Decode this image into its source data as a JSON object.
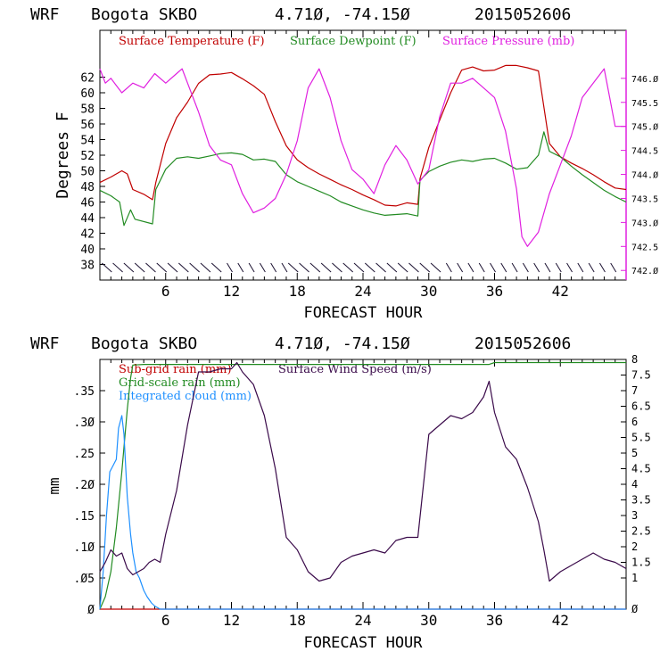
{
  "colors": {
    "temp": "#c00000",
    "dew": "#228b22",
    "pres": "#e020e0",
    "subgrid": "#c00000",
    "grid": "#228b22",
    "cloud": "#1e90ff",
    "wind": "#3a0a4a",
    "axis": "#000000"
  },
  "chart_data": [
    {
      "type": "line",
      "header": {
        "model": "WRF",
        "station": "Bogota SKBO",
        "coords": "4.71Ø, -74.15Ø",
        "run": "2015052606"
      },
      "xlabel": "FORECAST HOUR",
      "ylabel": "Degrees F",
      "xlim": [
        0,
        48
      ],
      "x_ticks": [
        "6",
        "12",
        "18",
        "24",
        "30",
        "36",
        "42"
      ],
      "ylim": [
        36,
        68
      ],
      "y_ticks": [
        "38",
        "40",
        "42",
        "44",
        "46",
        "48",
        "50",
        "52",
        "54",
        "56",
        "58",
        "60",
        "62"
      ],
      "y2lim": [
        741.8,
        747.0
      ],
      "y2_ticks": [
        "742.Ø",
        "742.5",
        "743.Ø",
        "743.5",
        "744.Ø",
        "744.5",
        "745.Ø",
        "745.5",
        "746.Ø"
      ],
      "legend": [
        "Surface Temperature (F)",
        "Surface Dewpoint (F)",
        "Surface Pressure (mb)"
      ],
      "series": [
        {
          "name": "Surface Temperature (F)",
          "axis": "left",
          "x": [
            0,
            1,
            2,
            2.5,
            3,
            4,
            4.8,
            5.1,
            6,
            7,
            8,
            9,
            10,
            11,
            12,
            13,
            14,
            15,
            16,
            17,
            18,
            19,
            20,
            21,
            22,
            23,
            24,
            25,
            26,
            27,
            28,
            29,
            29.2,
            30,
            31,
            32,
            33,
            34,
            35,
            36,
            37,
            38,
            39,
            40,
            41,
            42,
            43,
            44,
            45,
            46,
            47,
            48
          ],
          "values": [
            48.5,
            49.2,
            50.0,
            49.6,
            47.6,
            47.0,
            46.3,
            48.5,
            53.5,
            56.8,
            58.8,
            61.2,
            62.3,
            62.4,
            62.6,
            61.8,
            60.9,
            59.8,
            56.3,
            53.2,
            51.4,
            50.4,
            49.6,
            48.9,
            48.2,
            47.6,
            46.9,
            46.3,
            45.6,
            45.5,
            45.9,
            45.7,
            49.0,
            53.0,
            56.5,
            60.0,
            62.9,
            63.3,
            62.8,
            62.9,
            63.5,
            63.5,
            63.2,
            62.8,
            53.5,
            51.8,
            51.0,
            50.3,
            49.5,
            48.6,
            47.8,
            47.6
          ]
        },
        {
          "name": "Surface Dewpoint (F)",
          "axis": "left",
          "x": [
            0,
            1,
            1.8,
            2.2,
            2.8,
            3.2,
            4.8,
            5.1,
            6,
            7,
            8,
            9,
            10,
            11,
            12,
            13,
            14,
            15,
            16,
            17,
            18,
            19,
            20,
            21,
            22,
            23,
            24,
            25,
            26,
            27,
            28,
            29,
            29.2,
            30,
            31,
            32,
            33,
            34,
            35,
            36,
            37,
            38,
            39,
            40,
            40.5,
            41,
            42,
            43,
            44,
            45,
            46,
            47,
            48
          ],
          "values": [
            47.5,
            46.8,
            46.0,
            43.0,
            45.0,
            43.8,
            43.2,
            47.6,
            50.2,
            51.6,
            51.8,
            51.6,
            51.9,
            52.2,
            52.3,
            52.1,
            51.4,
            51.5,
            51.2,
            49.5,
            48.6,
            48.0,
            47.4,
            46.8,
            46.0,
            45.5,
            45.0,
            44.6,
            44.3,
            44.4,
            44.5,
            44.2,
            48.8,
            49.9,
            50.6,
            51.1,
            51.4,
            51.2,
            51.5,
            51.6,
            51.0,
            50.2,
            50.4,
            52.0,
            55.0,
            52.5,
            51.8,
            50.6,
            49.5,
            48.5,
            47.5,
            46.7,
            46.0
          ]
        },
        {
          "name": "Surface Pressure (mb)",
          "axis": "right",
          "x": [
            0,
            0.5,
            1,
            2,
            3,
            4,
            5,
            6,
            7,
            7.5,
            8,
            9,
            10,
            11,
            12,
            13,
            14,
            15,
            16,
            17,
            18,
            19,
            20,
            21,
            22,
            23,
            24,
            25,
            26,
            27,
            28,
            29,
            30,
            31,
            32,
            33,
            34,
            35,
            36,
            37,
            38,
            38.5,
            39,
            40,
            41,
            42,
            43,
            44,
            45,
            46,
            46.5,
            47,
            48
          ],
          "values": [
            746.2,
            745.9,
            746.0,
            745.7,
            745.9,
            745.8,
            746.1,
            745.9,
            746.1,
            746.2,
            745.9,
            745.3,
            744.6,
            744.3,
            744.2,
            743.6,
            743.2,
            743.3,
            743.5,
            744.0,
            744.7,
            745.8,
            746.2,
            745.6,
            744.7,
            744.1,
            743.9,
            743.6,
            744.2,
            744.6,
            744.3,
            743.8,
            744.1,
            745.2,
            745.9,
            745.9,
            746.0,
            745.8,
            745.6,
            744.9,
            743.7,
            742.7,
            742.5,
            742.8,
            743.6,
            744.2,
            744.8,
            745.6,
            745.9,
            746.2,
            745.6,
            745.0,
            745.0
          ]
        }
      ]
    },
    {
      "type": "line",
      "header": {
        "model": "WRF",
        "station": "Bogota SKBO",
        "coords": "4.71Ø, -74.15Ø",
        "run": "2015052606"
      },
      "xlabel": "FORECAST HOUR",
      "ylabel": "mm",
      "xlim": [
        0,
        48
      ],
      "x_ticks": [
        "6",
        "12",
        "18",
        "24",
        "30",
        "36",
        "42"
      ],
      "ylim": [
        0,
        0.4
      ],
      "y_ticks": [
        "Ø",
        ".Ø5",
        ".1Ø",
        ".15",
        ".2Ø",
        ".25",
        ".3Ø",
        ".35"
      ],
      "y2lim": [
        0,
        8.0
      ],
      "y2_ticks": [
        "Ø",
        "1",
        "1.5",
        "2",
        "2.5",
        "3",
        "3.5",
        "4",
        "4.5",
        "5",
        "5.5",
        "6",
        "6.5",
        "7",
        "7.5",
        "8"
      ],
      "legend": [
        "Sub-grid rain (mm)",
        "Grid-scale rain (mm)",
        "Integrated cloud (mm)",
        "Surface Wind Speed (m/s)"
      ],
      "series": [
        {
          "name": "Sub-grid rain (mm)",
          "axis": "left",
          "x": [
            0,
            48
          ],
          "values": [
            0,
            0
          ]
        },
        {
          "name": "Grid-scale rain (mm)",
          "axis": "left",
          "x": [
            0,
            0.5,
            1,
            1.5,
            2,
            2.5,
            2.8,
            3,
            4,
            10,
            20,
            30,
            35.5,
            36,
            40,
            48
          ],
          "values": [
            0,
            0.02,
            0.06,
            0.13,
            0.22,
            0.32,
            0.37,
            0.391,
            0.392,
            0.392,
            0.392,
            0.392,
            0.392,
            0.395,
            0.395,
            0.395
          ]
        },
        {
          "name": "Integrated cloud (mm)",
          "axis": "left",
          "x": [
            0,
            0.3,
            0.6,
            0.9,
            1.2,
            1.5,
            1.7,
            2.0,
            2.2,
            2.5,
            2.8,
            3.0,
            3.3,
            3.6,
            4.0,
            4.3,
            4.7,
            5.0,
            5.5,
            48
          ],
          "values": [
            0,
            0.06,
            0.15,
            0.22,
            0.23,
            0.24,
            0.29,
            0.31,
            0.28,
            0.18,
            0.12,
            0.09,
            0.06,
            0.05,
            0.03,
            0.02,
            0.01,
            0.005,
            0,
            0
          ]
        },
        {
          "name": "Surface Wind Speed (m/s)",
          "axis": "right",
          "x": [
            0,
            0.5,
            1,
            1.5,
            2,
            2.5,
            3,
            3.5,
            4,
            4.5,
            5,
            5.5,
            6,
            7,
            8,
            9,
            10,
            11,
            12,
            12.5,
            13,
            14,
            15,
            16,
            17,
            18,
            19,
            20,
            21,
            22,
            23,
            24,
            25,
            26,
            27,
            28,
            29,
            30,
            31,
            32,
            33,
            34,
            35,
            35.5,
            36,
            37,
            38,
            39,
            40,
            40.5,
            41,
            42,
            43,
            44,
            45,
            46,
            47,
            48
          ],
          "values": [
            1.2,
            1.5,
            1.9,
            1.7,
            1.8,
            1.3,
            1.1,
            1.2,
            1.3,
            1.5,
            1.6,
            1.5,
            2.4,
            3.8,
            5.9,
            7.6,
            7.6,
            7.7,
            7.7,
            7.9,
            7.6,
            7.2,
            6.2,
            4.5,
            2.3,
            1.9,
            1.2,
            0.9,
            1.0,
            1.5,
            1.7,
            1.8,
            1.9,
            1.8,
            2.2,
            2.3,
            2.3,
            5.6,
            5.9,
            6.2,
            6.1,
            6.3,
            6.8,
            7.3,
            6.3,
            5.2,
            4.8,
            3.9,
            2.8,
            1.9,
            0.9,
            1.2,
            1.4,
            1.6,
            1.8,
            1.6,
            1.5,
            1.3
          ]
        }
      ],
      "wind_barbs_note": "barb row drawn along the bottom of the upper panel"
    }
  ]
}
